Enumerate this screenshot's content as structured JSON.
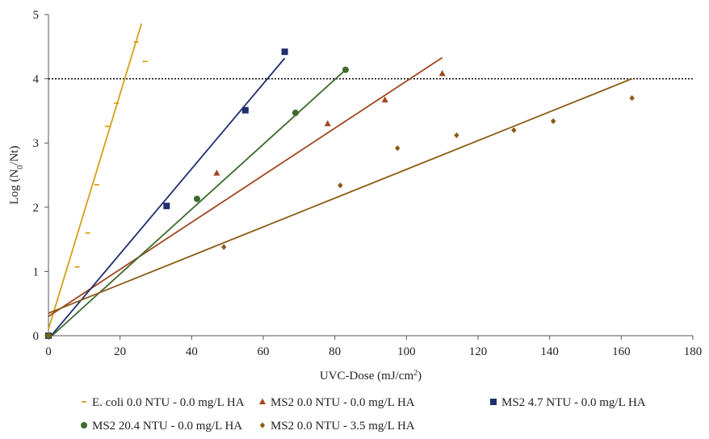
{
  "chart_data": {
    "type": "scatter",
    "title": "",
    "xlabel": {
      "main": "UVC-Dose (mJ/cm",
      "sup": "2",
      "tail": ")"
    },
    "ylabel": {
      "main": "Log (N",
      "sub": "0",
      "tail": "/Nt)"
    },
    "xlim": [
      0,
      180
    ],
    "ylim": [
      0,
      5
    ],
    "xticks": [
      0,
      20,
      40,
      60,
      80,
      100,
      120,
      140,
      160,
      180
    ],
    "yticks": [
      0,
      1,
      2,
      3,
      4,
      5
    ],
    "grid": false,
    "legend_position": "bottom",
    "threshold_line": {
      "y": 4,
      "style": "dotted",
      "color": "#000000"
    },
    "series": [
      {
        "name": "E. coli 0.0 NTU - 0.0 mg/L HA",
        "marker": "dash",
        "color": "#D4A017",
        "points": [
          [
            0,
            0
          ],
          [
            8,
            1.07
          ],
          [
            11,
            1.6
          ],
          [
            13.5,
            2.35
          ],
          [
            16.5,
            3.26
          ],
          [
            19,
            3.62
          ],
          [
            24.5,
            4.57
          ],
          [
            27,
            4.27
          ]
        ],
        "trendline": [
          [
            0,
            0.1
          ],
          [
            26,
            4.86
          ]
        ]
      },
      {
        "name": "MS2 0.0 NTU - 0.0 mg/L HA",
        "marker": "triangle",
        "color": "#A0461E",
        "points": [
          [
            0,
            0
          ],
          [
            47,
            2.53
          ],
          [
            78,
            3.3
          ],
          [
            94,
            3.67
          ],
          [
            110,
            4.08
          ]
        ],
        "trendline": [
          [
            0,
            0.3
          ],
          [
            110,
            4.33
          ]
        ]
      },
      {
        "name": "MS2 4.7 NTU - 0.0 mg/L HA",
        "marker": "square",
        "color": "#1F2E6E",
        "points": [
          [
            0,
            0
          ],
          [
            33,
            2.02
          ],
          [
            55,
            3.51
          ],
          [
            66,
            4.42
          ]
        ],
        "trendline": [
          [
            0,
            -0.05
          ],
          [
            66,
            4.32
          ]
        ]
      },
      {
        "name": "MS2 20.4 NTU - 0.0 mg/L HA",
        "marker": "circle",
        "color": "#3E6B2E",
        "points": [
          [
            0,
            0
          ],
          [
            41.5,
            2.13
          ],
          [
            69,
            3.47
          ],
          [
            83,
            4.14
          ]
        ],
        "trendline": [
          [
            0,
            -0.05
          ],
          [
            83,
            4.14
          ]
        ]
      },
      {
        "name": "MS2 0.0 NTU - 3.5 mg/L HA",
        "marker": "diamond",
        "color": "#8B5A16",
        "points": [
          [
            0,
            0
          ],
          [
            49,
            1.38
          ],
          [
            81.5,
            2.34
          ],
          [
            97.5,
            2.92
          ],
          [
            114,
            3.12
          ],
          [
            130,
            3.2
          ],
          [
            141,
            3.34
          ],
          [
            163,
            3.7
          ]
        ],
        "trendline": [
          [
            0,
            0.35
          ],
          [
            163,
            4.0
          ]
        ]
      }
    ]
  }
}
